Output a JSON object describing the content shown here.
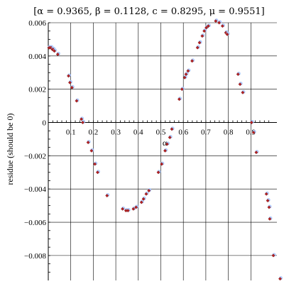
{
  "chart_data": {
    "type": "scatter",
    "title": "[α = 0.9365, β = 0.1128, c = 0.8295, μ = 0.9551]",
    "xlabel": "α",
    "ylabel": "residue (should be 0)",
    "xlim": [
      0,
      1.0
    ],
    "ylim": [
      -0.0095,
      0.006
    ],
    "xticks": [
      0.1,
      0.2,
      0.3,
      0.4,
      0.5,
      0.6,
      0.7,
      0.8,
      0.9
    ],
    "xtick_labels": [
      "0.1",
      "0.2",
      "0.3",
      "0.4",
      "0.5",
      "0.6",
      "0.7",
      "0.8",
      "0.9"
    ],
    "yticks": [
      0.006,
      0.004,
      0.002,
      0,
      -0.002,
      -0.004,
      -0.006,
      -0.008
    ],
    "ytick_labels": [
      "0.006",
      "0.004",
      "0.002",
      "0",
      "−0.002",
      "−0.004",
      "−0.006",
      "−0.008"
    ],
    "grid": true,
    "series": [
      {
        "marker": "diamond",
        "color": "#b22222",
        "halo": "#aac8ff",
        "x": [
          0.003,
          0.006,
          0.012,
          0.018,
          0.021,
          0.027,
          0.042,
          0.09,
          0.096,
          0.105,
          0.126,
          0.147,
          0.153,
          0.177,
          0.192,
          0.207,
          0.219,
          0.261,
          0.33,
          0.345,
          0.354,
          0.378,
          0.39,
          0.414,
          0.423,
          0.435,
          0.447,
          0.489,
          0.504,
          0.519,
          0.528,
          0.54,
          0.549,
          0.582,
          0.594,
          0.606,
          0.612,
          0.621,
          0.639,
          0.663,
          0.672,
          0.684,
          0.693,
          0.702,
          0.711,
          0.744,
          0.759,
          0.774,
          0.789,
          0.795,
          0.843,
          0.852,
          0.864,
          0.903,
          0.912,
          0.924,
          0.969,
          0.975,
          0.981,
          0.984,
          1.0,
          1.03
        ],
        "y": [
          0.0045,
          0.0045,
          0.0045,
          0.0044,
          0.0044,
          0.0043,
          0.0041,
          0.0028,
          0.0024,
          0.0021,
          0.0013,
          0.0002,
          0.0,
          -0.0012,
          -0.0017,
          -0.0025,
          -0.003,
          -0.0044,
          -0.0052,
          -0.0053,
          -0.0053,
          -0.0052,
          -0.0051,
          -0.0048,
          -0.0046,
          -0.0043,
          -0.0041,
          -0.003,
          -0.0025,
          -0.0017,
          -0.0013,
          -0.0009,
          -0.0004,
          0.0014,
          0.002,
          0.0027,
          0.0029,
          0.0031,
          0.0037,
          0.0045,
          0.0048,
          0.0052,
          0.0055,
          0.0057,
          0.0058,
          0.0061,
          0.006,
          0.0058,
          0.0054,
          0.0053,
          0.0029,
          0.0023,
          0.0018,
          0.0,
          -0.0006,
          -0.0018,
          -0.0043,
          -0.0047,
          -0.0051,
          -0.0058,
          -0.008,
          -0.0094
        ]
      }
    ]
  }
}
